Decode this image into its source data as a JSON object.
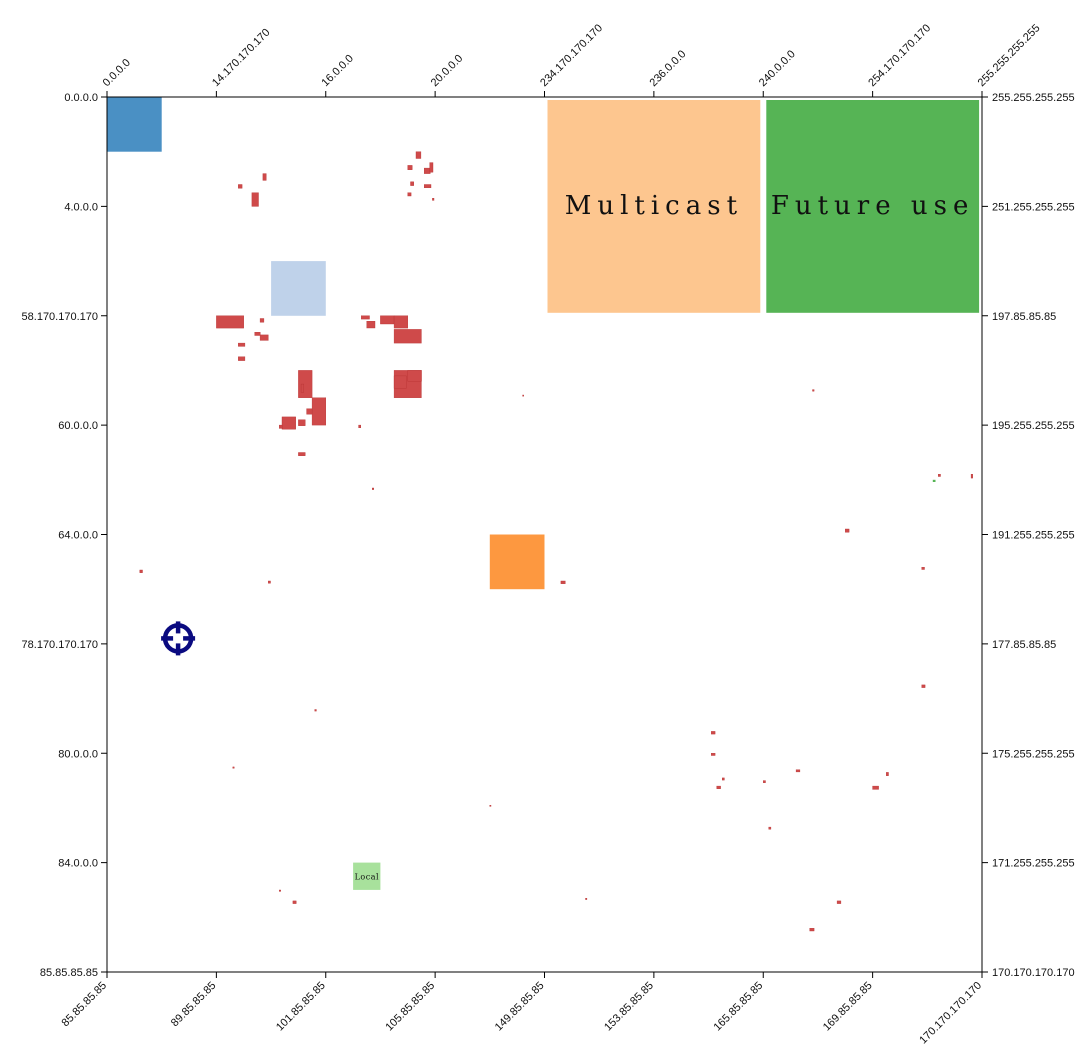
{
  "chart_data": {
    "type": "heatmap",
    "title": "",
    "xlabel": "",
    "ylabel": "",
    "grid": false,
    "axes": {
      "top": [
        "0.0.0.0",
        "14.170.170.170",
        "16.0.0.0",
        "20.0.0.0",
        "234.170.170.170",
        "236.0.0.0",
        "240.0.0.0",
        "254.170.170.170",
        "255.255.255.255"
      ],
      "bottom": [
        "85.85.85.85",
        "89.85.85.85",
        "101.85.85.85",
        "105.85.85.85",
        "149.85.85.85",
        "153.85.85.85",
        "165.85.85.85",
        "169.85.85.85",
        "170.170.170.170"
      ],
      "left": [
        "0.0.0.0",
        "4.0.0.0",
        "58.170.170.170",
        "60.0.0.0",
        "64.0.0.0",
        "78.170.170.170",
        "80.0.0.0",
        "84.0.0.0",
        "85.85.85.85"
      ],
      "right": [
        "255.255.255.255",
        "251.255.255.255",
        "197.85.85.85",
        "195.255.255.255",
        "191.255.255.255",
        "177.85.85.85",
        "175.255.255.255",
        "171.255.255.255",
        "170.170.170.170"
      ]
    },
    "grid_units": 32,
    "blocks": [
      {
        "col": 0,
        "row": 0,
        "size": 2,
        "color": "#4a90c4",
        "label": ""
      },
      {
        "col": 16,
        "row": 0,
        "size": 8,
        "color": "#fdc68f",
        "label": "Multicast"
      },
      {
        "col": 24,
        "row": 0,
        "size": 8,
        "color": "#56b455",
        "label": "Future use"
      },
      {
        "col": 6,
        "row": 6,
        "size": 2,
        "color": "#bfd2ea",
        "label": ""
      },
      {
        "col": 14,
        "row": 16,
        "size": 2,
        "color": "#fd9840",
        "label": ""
      },
      {
        "col": 9,
        "row": 28,
        "size": 1,
        "color": "#a8e19c",
        "label": "Local"
      }
    ],
    "cells": [
      [
        11.3,
        2.0,
        0.18,
        0.25
      ],
      [
        11.0,
        2.5,
        0.16,
        0.16
      ],
      [
        11.6,
        2.6,
        0.22,
        0.2
      ],
      [
        11.8,
        2.4,
        0.12,
        0.35
      ],
      [
        11.1,
        3.1,
        0.12,
        0.14
      ],
      [
        11.6,
        3.2,
        0.25,
        0.12
      ],
      [
        11.0,
        3.5,
        0.12,
        0.12
      ],
      [
        11.9,
        3.7,
        0.06,
        0.08
      ],
      [
        4.8,
        3.2,
        0.14,
        0.14
      ],
      [
        5.7,
        2.8,
        0.12,
        0.25
      ],
      [
        5.3,
        3.5,
        0.24,
        0.5
      ],
      [
        4.0,
        8.0,
        1.0,
        0.45
      ],
      [
        5.6,
        8.1,
        0.14,
        0.14
      ],
      [
        5.4,
        8.6,
        0.2,
        0.12
      ],
      [
        5.6,
        8.7,
        0.3,
        0.2
      ],
      [
        4.8,
        9.0,
        0.24,
        0.12
      ],
      [
        4.8,
        9.5,
        0.24,
        0.14
      ],
      [
        7.0,
        10.0,
        0.5,
        1.0
      ],
      [
        7.1,
        10.5,
        0.1,
        0.3
      ],
      [
        7.5,
        11.0,
        0.5,
        1.0
      ],
      [
        7.3,
        11.4,
        0.2,
        0.2
      ],
      [
        7.0,
        11.8,
        0.25,
        0.22
      ],
      [
        6.4,
        11.7,
        0.5,
        0.45
      ],
      [
        6.3,
        12.0,
        0.12,
        0.12
      ],
      [
        7.0,
        13.0,
        0.25,
        0.12
      ],
      [
        10.0,
        8.0,
        0.5,
        0.3
      ],
      [
        10.5,
        8.0,
        0.5,
        0.45
      ],
      [
        10.5,
        8.5,
        1.0,
        0.5
      ],
      [
        10.5,
        10.0,
        1.0,
        1.0
      ],
      [
        10.5,
        10.2,
        0.45,
        0.45
      ],
      [
        11.0,
        10.0,
        0.5,
        0.4
      ],
      [
        9.3,
        8.0,
        0.3,
        0.12
      ],
      [
        9.5,
        8.2,
        0.3,
        0.25
      ],
      [
        9.2,
        12.0,
        0.08,
        0.1
      ],
      [
        9.7,
        14.3,
        0.06,
        0.06
      ],
      [
        1.2,
        17.3,
        0.1,
        0.1
      ],
      [
        5.9,
        17.7,
        0.08,
        0.08
      ],
      [
        7.6,
        22.4,
        0.06,
        0.06
      ],
      [
        4.6,
        24.5,
        0.05,
        0.05
      ],
      [
        6.3,
        29.0,
        0.05,
        0.05
      ],
      [
        6.8,
        29.4,
        0.12,
        0.1
      ],
      [
        14.0,
        25.9,
        0.04,
        0.04
      ],
      [
        15.2,
        10.9,
        0.04,
        0.04
      ],
      [
        17.5,
        29.3,
        0.05,
        0.05
      ],
      [
        16.6,
        17.7,
        0.16,
        0.1
      ],
      [
        25.8,
        10.7,
        0.06,
        0.06
      ],
      [
        27.0,
        15.8,
        0.14,
        0.12
      ],
      [
        29.8,
        17.2,
        0.1,
        0.08
      ],
      [
        30.4,
        13.8,
        0.08,
        0.08
      ],
      [
        31.6,
        13.8,
        0.06,
        0.14
      ],
      [
        29.8,
        21.5,
        0.12,
        0.1
      ],
      [
        25.7,
        30.4,
        0.16,
        0.1
      ],
      [
        26.7,
        29.4,
        0.14,
        0.1
      ],
      [
        25.2,
        24.6,
        0.14,
        0.08
      ],
      [
        24.2,
        26.7,
        0.08,
        0.08
      ],
      [
        22.1,
        23.2,
        0.14,
        0.1
      ],
      [
        22.1,
        24.0,
        0.14,
        0.08
      ],
      [
        22.3,
        25.2,
        0.14,
        0.1
      ],
      [
        22.5,
        24.9,
        0.08,
        0.08
      ],
      [
        24.0,
        25.0,
        0.08,
        0.08
      ],
      [
        28.0,
        25.2,
        0.22,
        0.12
      ],
      [
        28.5,
        24.7,
        0.08,
        0.12
      ]
    ],
    "green_cells": [
      [
        30.2,
        14.0,
        0.1,
        0.08
      ]
    ],
    "marker": {
      "col": 2.6,
      "row": 19.8,
      "color": "#0a0a80"
    },
    "colors": {
      "cell": "#cf4a4a",
      "cell_stroke": "#b83434"
    }
  }
}
